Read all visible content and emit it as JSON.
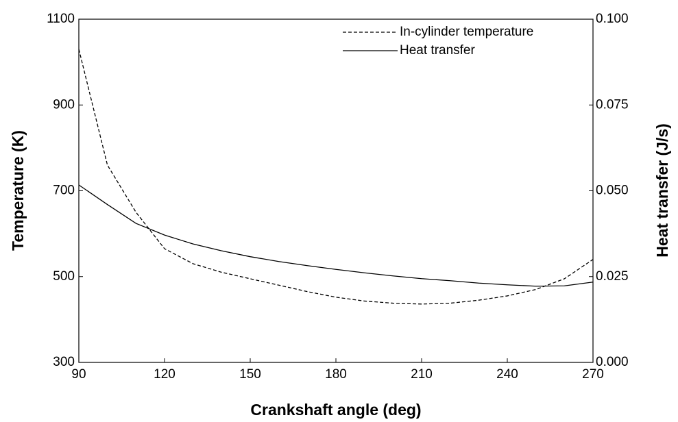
{
  "chart_data": {
    "type": "line",
    "xlabel": "Crankshaft angle (deg)",
    "ylabel": "Temperature (K)",
    "y2label": "Heat transfer (J/s)",
    "x": [
      90,
      100,
      110,
      120,
      130,
      140,
      150,
      160,
      170,
      180,
      190,
      200,
      210,
      220,
      230,
      240,
      250,
      260,
      270
    ],
    "series": [
      {
        "name": "In-cylinder temperature",
        "color": "#000000",
        "style": "dashed",
        "values": [
          1030,
          760,
          650,
          565,
          530,
          510,
          495,
          480,
          465,
          452,
          443,
          438,
          436,
          438,
          445,
          455,
          470,
          495,
          540
        ]
      },
      {
        "name": "Heat transfer",
        "color": "#000000",
        "style": "solid",
        "axis": "y2",
        "values": [
          0.0517,
          0.046,
          0.0405,
          0.0371,
          0.0345,
          0.0325,
          0.0308,
          0.0294,
          0.0282,
          0.0271,
          0.0261,
          0.0252,
          0.0244,
          0.0238,
          0.0231,
          0.0226,
          0.0222,
          0.0223,
          0.0234
        ]
      }
    ],
    "xlim": [
      90,
      270
    ],
    "xticks": [
      90,
      120,
      150,
      180,
      210,
      240,
      270
    ],
    "ylim": [
      300,
      1100
    ],
    "yticks": [
      300,
      500,
      700,
      900,
      1100
    ],
    "y2lim": [
      0,
      0.1
    ],
    "y2ticks": [
      {
        "value": 0,
        "label": "0.000"
      },
      0.025,
      {
        "value": 0.05,
        "label": "0.050"
      },
      0.075,
      {
        "value": 0.1,
        "label": "0.100"
      }
    ],
    "legend": "upper right",
    "grid": false
  }
}
